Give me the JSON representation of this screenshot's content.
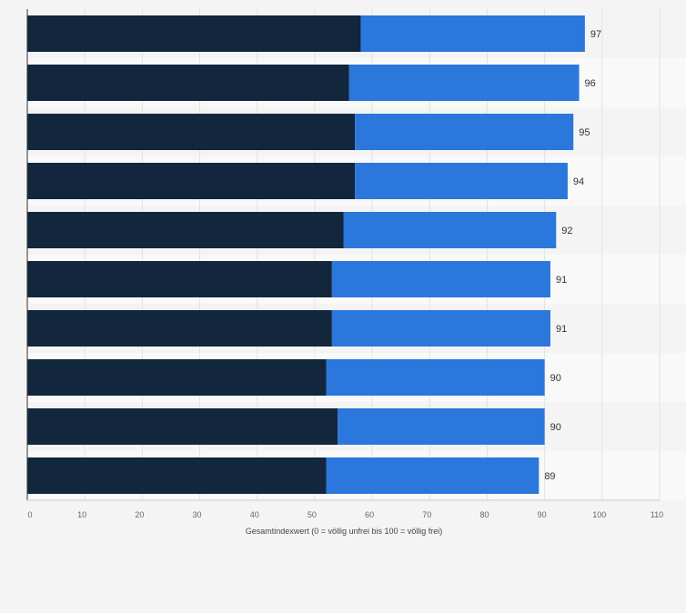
{
  "chart_data": {
    "type": "bar",
    "orientation": "horizontal",
    "stacked": true,
    "title": "",
    "xlabel": "Gesamtindexwert (0 = völlig unfrei bis 100 = völlig frei)",
    "ylabel": "",
    "xlim": [
      0,
      110
    ],
    "xticks": [
      0,
      10,
      20,
      30,
      40,
      50,
      60,
      70,
      80,
      90,
      100,
      110
    ],
    "tick_labels": [
      "0",
      "10",
      "20",
      "30",
      "40",
      "50",
      "60",
      "70",
      "80",
      "90",
      "100",
      "110"
    ],
    "grid": true,
    "categories": [
      "",
      "",
      "",
      "",
      "",
      "",
      "",
      "",
      "",
      ""
    ],
    "series": [
      {
        "name": "",
        "color": "#12263d",
        "values": [
          58,
          56,
          57,
          57,
          55,
          53,
          53,
          52,
          54,
          52
        ]
      },
      {
        "name": "",
        "color": "#2b77dc",
        "values": [
          39,
          40,
          38,
          37,
          37,
          38,
          38,
          38,
          36,
          37
        ]
      }
    ],
    "totals": [
      97,
      96,
      95,
      94,
      92,
      91,
      91,
      90,
      90,
      89
    ],
    "total_labels": [
      "97",
      "96",
      "95",
      "94",
      "92",
      "91",
      "91",
      "90",
      "90",
      "89"
    ]
  },
  "colors": {
    "background": "#f4f4f4",
    "band_light": "#f9f9f9",
    "grid": "#e2e2e2",
    "axis": "#333333",
    "tick_text": "#666666",
    "label_text": "#333333"
  }
}
